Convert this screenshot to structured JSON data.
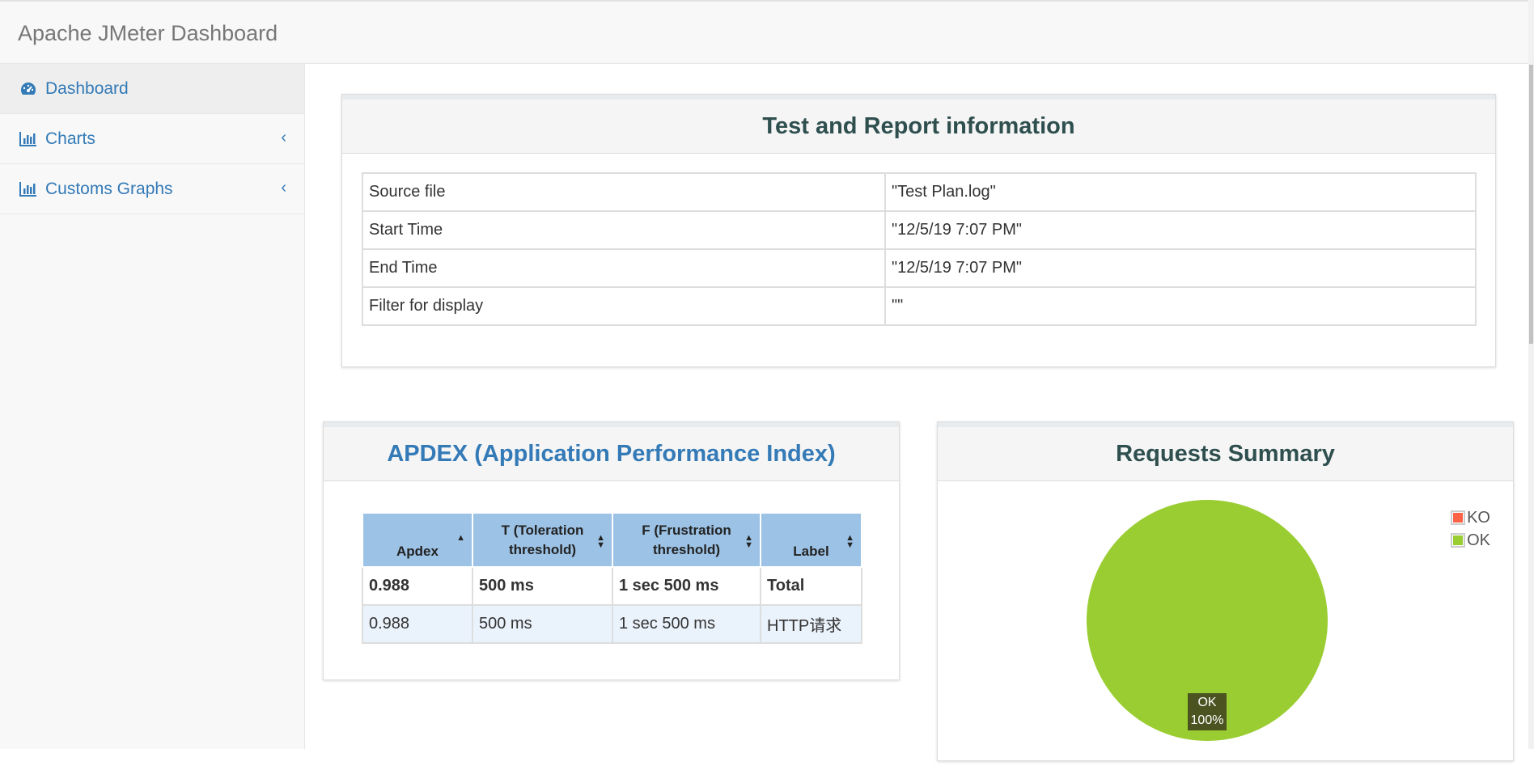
{
  "app": {
    "title": "Apache JMeter Dashboard"
  },
  "sidebar": {
    "items": [
      {
        "label": "Dashboard",
        "icon": "dashboard-icon"
      },
      {
        "label": "Charts",
        "icon": "bar-chart-icon"
      },
      {
        "label": "Customs Graphs",
        "icon": "bar-chart-icon"
      }
    ]
  },
  "info": {
    "title": "Test and Report information",
    "rows": [
      {
        "key": "Source file",
        "value": "\"Test Plan.log\""
      },
      {
        "key": "Start Time",
        "value": "\"12/5/19 7:07 PM\""
      },
      {
        "key": "End Time",
        "value": "\"12/5/19 7:07 PM\""
      },
      {
        "key": "Filter for display",
        "value": "\"\""
      }
    ]
  },
  "apdex": {
    "title": "APDEX (Application Performance Index)",
    "headers": [
      "Apdex",
      "T (Toleration threshold)",
      "F (Frustration threshold)",
      "Label"
    ],
    "rows": [
      [
        "0.988",
        "500 ms",
        "1 sec 500 ms",
        "Total"
      ],
      [
        "0.988",
        "500 ms",
        "1 sec 500 ms",
        "HTTP请求"
      ]
    ]
  },
  "requests": {
    "title": "Requests Summary",
    "legend": [
      {
        "label": "KO",
        "color": "#ff6347"
      },
      {
        "label": "OK",
        "color": "#9acd32"
      }
    ],
    "pie_label": {
      "name": "OK",
      "percent": "100%"
    }
  },
  "chart_data": {
    "type": "pie",
    "title": "Requests Summary",
    "categories": [
      "KO",
      "OK"
    ],
    "values": [
      0,
      100
    ],
    "colors": [
      "#ff6347",
      "#9acd32"
    ],
    "legend_position": "top-right"
  }
}
